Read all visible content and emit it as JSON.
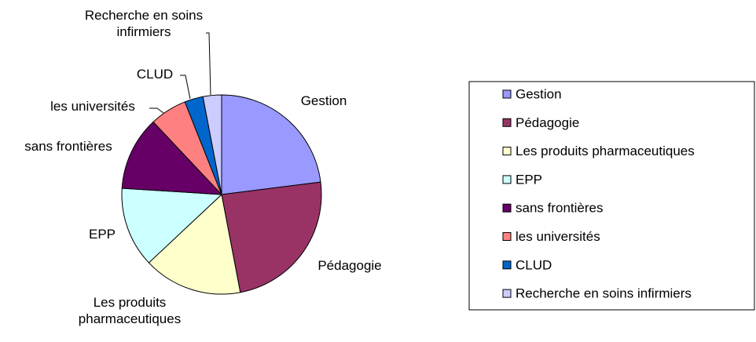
{
  "chart_data": {
    "type": "pie",
    "categories": [
      "Gestion",
      "Pédagogie",
      "Les produits pharmaceutiques",
      "EPP",
      "sans frontières",
      "les universités",
      "CLUD",
      "Recherche en soins infirmiers"
    ],
    "values": [
      23,
      24,
      16,
      13,
      12,
      6,
      3,
      3
    ],
    "colors": [
      "#9999ff",
      "#993366",
      "#ffffcc",
      "#ccffff",
      "#660066",
      "#ff8080",
      "#0066cc",
      "#ccccff"
    ],
    "legend": "right"
  }
}
